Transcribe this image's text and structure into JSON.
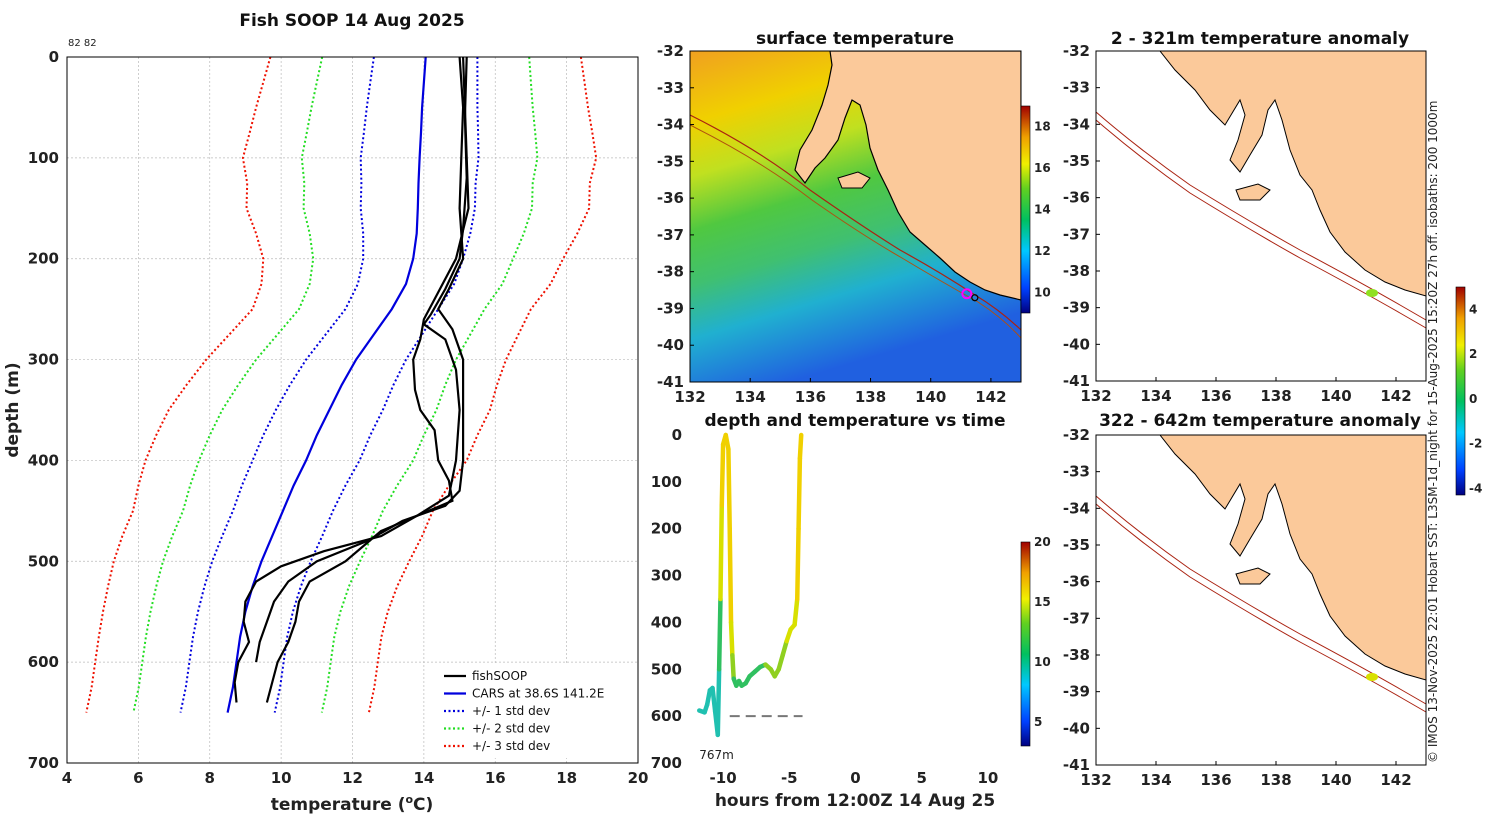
{
  "colors": {
    "land": "#fbc99a",
    "fishsoop": "#000000",
    "cars": "#0000dd",
    "std1": "#0000dd",
    "std2": "#22dd22",
    "std3": "#ee1100",
    "isobath": "#aa2211",
    "track": "#b05010"
  },
  "chart_data": [
    {
      "id": "profile",
      "type": "line",
      "title": "Fish SOOP 14 Aug 2025",
      "corner_label": "82 82",
      "xlabel": "temperature (",
      "xlabel_sup": "o",
      "xlabel_end": "C)",
      "ylabel": "depth (m)",
      "xlim": [
        4,
        20
      ],
      "ylim": [
        700,
        0
      ],
      "xticks": [
        4,
        6,
        8,
        10,
        12,
        14,
        16,
        18,
        20
      ],
      "yticks": [
        0,
        100,
        200,
        300,
        400,
        500,
        600,
        700
      ],
      "legend": [
        {
          "label": "fishSOOP",
          "style": "solid",
          "color_key": "fishsoop"
        },
        {
          "label": "CARS at 38.6S 141.2E",
          "style": "solid",
          "color_key": "cars"
        },
        {
          "label": "+/- 1 std dev",
          "style": "dotted",
          "color_key": "std1"
        },
        {
          "label": "+/- 2 std dev",
          "style": "dotted",
          "color_key": "std2"
        },
        {
          "label": "+/- 3 std dev",
          "style": "dotted",
          "color_key": "std3"
        }
      ],
      "depths": [
        0,
        25,
        50,
        75,
        100,
        125,
        150,
        175,
        200,
        225,
        250,
        275,
        300,
        325,
        350,
        375,
        400,
        425,
        450,
        475,
        500,
        525,
        550,
        575,
        600,
        625,
        650
      ],
      "cars_mean": [
        14.05,
        14.0,
        13.95,
        13.92,
        13.88,
        13.85,
        13.83,
        13.8,
        13.7,
        13.5,
        13.1,
        12.6,
        12.1,
        11.7,
        11.35,
        11.0,
        10.7,
        10.35,
        10.05,
        9.75,
        9.45,
        9.2,
        9.0,
        8.85,
        8.75,
        8.65,
        8.5
      ],
      "std": [
        1.45,
        1.5,
        1.55,
        1.6,
        1.65,
        1.6,
        1.6,
        1.5,
        1.4,
        1.35,
        1.3,
        1.35,
        1.4,
        1.45,
        1.5,
        1.5,
        1.5,
        1.45,
        1.4,
        1.4,
        1.38,
        1.35,
        1.33,
        1.32,
        1.32,
        1.32,
        1.32
      ],
      "fishsoop_casts": [
        {
          "name": "cast-1",
          "points": [
            [
              15.1,
              0
            ],
            [
              15.15,
              50
            ],
            [
              15.2,
              100
            ],
            [
              15.25,
              150
            ],
            [
              14.9,
              200
            ],
            [
              14.3,
              240
            ],
            [
              14.0,
              260
            ],
            [
              13.9,
              280
            ],
            [
              13.7,
              300
            ],
            [
              13.75,
              330
            ],
            [
              13.9,
              350
            ],
            [
              14.3,
              370
            ],
            [
              14.4,
              400
            ],
            [
              14.7,
              420
            ],
            [
              14.8,
              440
            ],
            [
              12.8,
              470
            ],
            [
              11.8,
              500
            ],
            [
              10.8,
              520
            ],
            [
              10.5,
              540
            ],
            [
              10.4,
              560
            ],
            [
              10.2,
              580
            ],
            [
              9.9,
              600
            ],
            [
              9.6,
              640
            ]
          ]
        },
        {
          "name": "cast-2",
          "points": [
            [
              15.0,
              0
            ],
            [
              15.1,
              50
            ],
            [
              15.05,
              100
            ],
            [
              15.0,
              150
            ],
            [
              15.1,
              200
            ],
            [
              14.7,
              230
            ],
            [
              14.4,
              250
            ],
            [
              14.8,
              270
            ],
            [
              15.1,
              300
            ],
            [
              15.1,
              350
            ],
            [
              15.1,
              400
            ],
            [
              15.0,
              430
            ],
            [
              14.6,
              445
            ],
            [
              13.4,
              460
            ],
            [
              12.4,
              480
            ],
            [
              11.0,
              500
            ],
            [
              10.2,
              520
            ],
            [
              9.8,
              540
            ],
            [
              9.6,
              560
            ],
            [
              9.4,
              580
            ],
            [
              9.3,
              600
            ]
          ]
        },
        {
          "name": "cast-3",
          "points": [
            [
              15.2,
              0
            ],
            [
              15.15,
              60
            ],
            [
              15.2,
              120
            ],
            [
              15.1,
              170
            ],
            [
              15.0,
              200
            ],
            [
              14.6,
              230
            ],
            [
              14.2,
              255
            ],
            [
              14.0,
              265
            ],
            [
              14.6,
              280
            ],
            [
              14.9,
              310
            ],
            [
              15.0,
              350
            ],
            [
              14.9,
              400
            ],
            [
              14.7,
              435
            ],
            [
              13.8,
              455
            ],
            [
              12.8,
              475
            ],
            [
              11.2,
              490
            ],
            [
              10.0,
              505
            ],
            [
              9.3,
              520
            ],
            [
              9.0,
              540
            ],
            [
              8.95,
              560
            ],
            [
              9.1,
              580
            ],
            [
              8.8,
              600
            ],
            [
              8.7,
              620
            ],
            [
              8.75,
              640
            ]
          ]
        }
      ]
    },
    {
      "id": "sst",
      "type": "heatmap",
      "title": "surface temperature",
      "xlim": [
        132,
        143
      ],
      "ylim": [
        -41,
        -32
      ],
      "xticks": [
        132,
        134,
        136,
        138,
        140,
        142
      ],
      "yticks": [
        -32,
        -33,
        -34,
        -35,
        -36,
        -37,
        -38,
        -39,
        -40,
        -41
      ],
      "colorbar_range": [
        9,
        19
      ],
      "colorbar_ticks": [
        10,
        12,
        14,
        16,
        18
      ]
    },
    {
      "id": "timeseries",
      "type": "scatter",
      "title": "depth and temperature vs time",
      "xlabel": "hours from 12:00Z 14 Aug 25",
      "xlim": [
        -12.5,
        12.5
      ],
      "ylim": [
        700,
        0
      ],
      "xticks": [
        -10,
        -5,
        0,
        5,
        10
      ],
      "yticks": [
        0,
        100,
        200,
        300,
        400,
        500,
        600,
        700
      ],
      "annotation": "767m",
      "bottom_depth_line": {
        "x": [
          -9.5,
          -4.0
        ],
        "depth": 600
      },
      "colorbar_range": [
        3,
        20
      ],
      "colorbar_ticks": [
        5,
        10,
        15,
        20
      ],
      "track": [
        {
          "t": -11.8,
          "d": 588,
          "temp": 10.2
        },
        {
          "t": -11.4,
          "d": 592,
          "temp": 10.2
        },
        {
          "t": -11.2,
          "d": 575,
          "temp": 10.3
        },
        {
          "t": -11.0,
          "d": 545,
          "temp": 10.5
        },
        {
          "t": -10.8,
          "d": 540,
          "temp": 10.4
        },
        {
          "t": -10.6,
          "d": 590,
          "temp": 10.2
        },
        {
          "t": -10.4,
          "d": 640,
          "temp": 10.0
        },
        {
          "t": -10.3,
          "d": 500,
          "temp": 11.5
        },
        {
          "t": -10.2,
          "d": 350,
          "temp": 14.0
        },
        {
          "t": -10.1,
          "d": 150,
          "temp": 15.0
        },
        {
          "t": -10.0,
          "d": 20,
          "temp": 15.2
        },
        {
          "t": -9.8,
          "d": 0,
          "temp": 15.2
        },
        {
          "t": -9.6,
          "d": 30,
          "temp": 15.2
        },
        {
          "t": -9.5,
          "d": 200,
          "temp": 15.0
        },
        {
          "t": -9.4,
          "d": 400,
          "temp": 14.0
        },
        {
          "t": -9.3,
          "d": 470,
          "temp": 12.5
        },
        {
          "t": -9.2,
          "d": 520,
          "temp": 11.0
        },
        {
          "t": -9.0,
          "d": 535,
          "temp": 10.8
        },
        {
          "t": -8.8,
          "d": 525,
          "temp": 11.0
        },
        {
          "t": -8.6,
          "d": 535,
          "temp": 11.0
        },
        {
          "t": -8.3,
          "d": 530,
          "temp": 11.2
        },
        {
          "t": -8.0,
          "d": 515,
          "temp": 11.5
        },
        {
          "t": -7.6,
          "d": 505,
          "temp": 11.8
        },
        {
          "t": -7.2,
          "d": 495,
          "temp": 12.2
        },
        {
          "t": -6.8,
          "d": 490,
          "temp": 12.6
        },
        {
          "t": -6.4,
          "d": 500,
          "temp": 12.5
        },
        {
          "t": -6.1,
          "d": 515,
          "temp": 12.4
        },
        {
          "t": -5.8,
          "d": 500,
          "temp": 12.8
        },
        {
          "t": -5.5,
          "d": 470,
          "temp": 13.2
        },
        {
          "t": -5.2,
          "d": 440,
          "temp": 13.6
        },
        {
          "t": -4.9,
          "d": 415,
          "temp": 14.0
        },
        {
          "t": -4.6,
          "d": 405,
          "temp": 14.3
        },
        {
          "t": -4.4,
          "d": 350,
          "temp": 14.8
        },
        {
          "t": -4.3,
          "d": 200,
          "temp": 15.0
        },
        {
          "t": -4.2,
          "d": 50,
          "temp": 15.1
        },
        {
          "t": -4.1,
          "d": 0,
          "temp": 15.1
        }
      ]
    },
    {
      "id": "anomaly-shallow",
      "type": "heatmap",
      "title": "2 - 321m temperature anomaly",
      "xlim": [
        132,
        143
      ],
      "ylim": [
        -41,
        -32
      ],
      "xticks": [
        132,
        134,
        136,
        138,
        140,
        142
      ],
      "yticks": [
        -32,
        -33,
        -34,
        -35,
        -36,
        -37,
        -38,
        -39,
        -40,
        -41
      ],
      "colorbar_range": [
        -4.3,
        5
      ],
      "colorbar_ticks": [
        -4,
        -2,
        0,
        2,
        4
      ],
      "marker": {
        "lon": 141.2,
        "lat": -38.6,
        "anomaly": 0.3
      }
    },
    {
      "id": "anomaly-deep",
      "type": "heatmap",
      "title": "322 - 642m temperature anomaly",
      "xlim": [
        132,
        143
      ],
      "ylim": [
        -41,
        -32
      ],
      "xticks": [
        132,
        134,
        136,
        138,
        140,
        142
      ],
      "yticks": [
        -32,
        -33,
        -34,
        -35,
        -36,
        -37,
        -38,
        -39,
        -40,
        -41
      ],
      "marker": {
        "lon": 141.2,
        "lat": -38.6,
        "anomaly": 1.0
      }
    }
  ],
  "footer": "© IMOS 13-Nov-2025 22:01 Hobart SST: L3SM-1d_night for 15-Aug-2025 15:20Z 27h off. isobaths: 200  1000m"
}
